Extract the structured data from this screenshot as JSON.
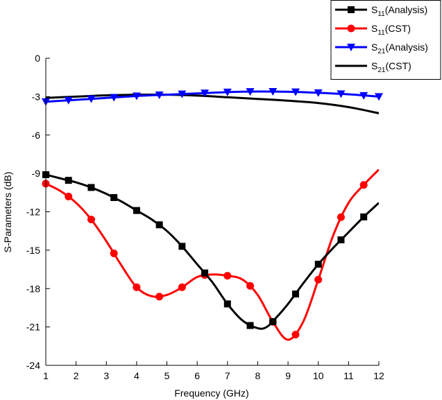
{
  "chart_data": {
    "type": "line",
    "xlabel": "Frequency (GHz)",
    "ylabel": "S-Parameters (dB)",
    "xlim": [
      1,
      12
    ],
    "ylim": [
      -24,
      0
    ],
    "xticks": [
      1,
      2,
      3,
      4,
      5,
      6,
      7,
      8,
      9,
      10,
      11,
      12
    ],
    "yticks": [
      0,
      -3,
      -6,
      -9,
      -12,
      -15,
      -18,
      -21,
      -24
    ],
    "grid": false,
    "legend_position": "top-right",
    "series": [
      {
        "name_main": "S",
        "name_sub": "11",
        "name_tail": "(Analysis)",
        "color": "#000000",
        "marker": "square",
        "x": [
          1,
          1.5,
          2,
          2.5,
          3,
          3.5,
          4,
          4.5,
          5,
          5.5,
          6,
          6.5,
          7,
          7.5,
          8,
          8.3,
          8.6,
          9,
          9.5,
          10,
          10.5,
          11,
          11.5,
          12
        ],
        "y": [
          -9.1,
          -9.4,
          -9.7,
          -10.1,
          -10.6,
          -11.2,
          -11.9,
          -12.6,
          -13.5,
          -14.7,
          -16.1,
          -17.5,
          -19.2,
          -20.5,
          -21.1,
          -21.0,
          -20.3,
          -19.2,
          -17.6,
          -16.1,
          -14.8,
          -13.6,
          -12.4,
          -11.3
        ],
        "markers_x": [
          1,
          1.75,
          2.5,
          3.25,
          4,
          4.75,
          5.5,
          6.25,
          7,
          7.75,
          8.5,
          9.25,
          10,
          10.75,
          11.5
        ]
      },
      {
        "name_main": "S",
        "name_sub": "11",
        "name_tail": "(CST)",
        "color": "#ff0000",
        "marker": "circle",
        "x": [
          1,
          1.5,
          2,
          2.5,
          3,
          3.5,
          4,
          4.5,
          5,
          5.5,
          6,
          6.5,
          7,
          7.5,
          8,
          8.5,
          9,
          9.5,
          10,
          10.5,
          11,
          11.5,
          12
        ],
        "y": [
          -9.8,
          -10.4,
          -11.3,
          -12.6,
          -14.3,
          -16.2,
          -17.9,
          -18.6,
          -18.5,
          -17.9,
          -17.1,
          -16.9,
          -17.0,
          -17.3,
          -18.5,
          -20.6,
          -22.0,
          -20.6,
          -17.3,
          -13.8,
          -11.3,
          -9.9,
          -8.7
        ],
        "markers_x": [
          1,
          1.75,
          2.5,
          3.25,
          4,
          4.75,
          5.5,
          6.25,
          7,
          7.75,
          8.5,
          9.25,
          10,
          10.75,
          11.5
        ]
      },
      {
        "name_main": "S",
        "name_sub": "21",
        "name_tail": "(Analysis)",
        "color": "#0000ff",
        "marker": "triangle-down",
        "x": [
          1,
          2,
          3,
          4,
          5,
          6,
          7,
          8,
          9,
          10,
          11,
          12
        ],
        "y": [
          -3.4,
          -3.25,
          -3.1,
          -2.95,
          -2.85,
          -2.75,
          -2.65,
          -2.6,
          -2.62,
          -2.7,
          -2.82,
          -3.0
        ],
        "markers_x": [
          1,
          1.75,
          2.5,
          3.25,
          4,
          4.75,
          5.5,
          6.25,
          7,
          7.75,
          8.5,
          9.25,
          10,
          10.75,
          11.5,
          12
        ]
      },
      {
        "name_main": "S",
        "name_sub": "21",
        "name_tail": "(CST)",
        "color": "#000000",
        "marker": "none",
        "x": [
          1,
          2,
          3,
          4,
          5,
          6,
          7,
          8,
          9,
          10,
          11,
          12
        ],
        "y": [
          -3.1,
          -3.0,
          -2.9,
          -2.85,
          -2.85,
          -2.92,
          -3.05,
          -3.18,
          -3.32,
          -3.5,
          -3.82,
          -4.3
        ],
        "markers_x": []
      }
    ]
  }
}
